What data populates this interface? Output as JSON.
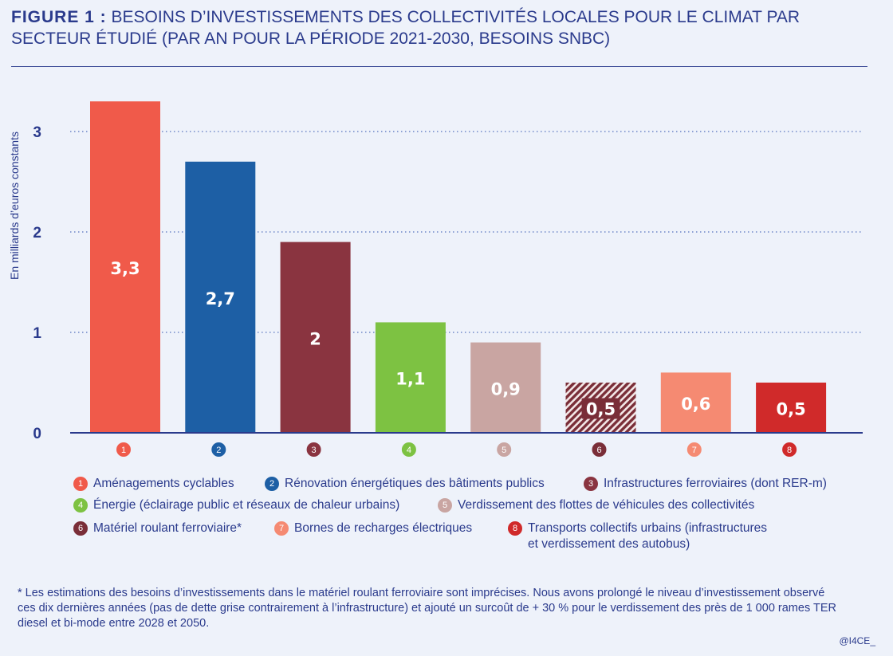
{
  "header": {
    "figure_label": "FIGURE 1 :",
    "title_text": "BESOINS D’INVESTISSEMENTS DES COLLECTIVITÉS LOCALES POUR LE CLIMAT PAR SECTEUR ÉTUDIÉ (PAR AN POUR LA PÉRIODE 2021-2030, BESOINS SNBC)"
  },
  "chart_data": {
    "type": "bar",
    "ylabel": "En milliards d’euros constants",
    "ylim": [
      0,
      3.3
    ],
    "yticks": [
      "0",
      "1",
      "2",
      "3"
    ],
    "grid": "dotted horizontal",
    "categories": [
      "1",
      "2",
      "3",
      "4",
      "5",
      "6",
      "7",
      "8"
    ],
    "values": [
      3.3,
      2.7,
      1.9,
      1.1,
      0.9,
      0.5,
      0.6,
      0.5
    ],
    "data_labels": [
      "3,3",
      "2,7",
      "2",
      "1,1",
      "0,9",
      "0,5",
      "0,6",
      "0,5"
    ],
    "colors": [
      "#f05a4a",
      "#1d5fa5",
      "#8a3440",
      "#7dc242",
      "#c9a5a2",
      "#7a2e38",
      "#f58a72",
      "#d02a2a"
    ],
    "hatched": [
      false,
      false,
      false,
      false,
      false,
      true,
      false,
      false
    ]
  },
  "legend": [
    {
      "num": "1",
      "label": "Aménagements cyclables"
    },
    {
      "num": "2",
      "label": "Rénovation énergétiques des bâtiments publics"
    },
    {
      "num": "3",
      "label": "Infrastructures ferroviaires (dont RER-m)"
    },
    {
      "num": "4",
      "label": "Énergie (éclairage public et réseaux de chaleur urbains)"
    },
    {
      "num": "5",
      "label": "Verdissement des flottes de véhicules des collectivités"
    },
    {
      "num": "6",
      "label": "Matériel roulant ferroviaire*"
    },
    {
      "num": "7",
      "label": "Bornes de recharges électriques"
    },
    {
      "num": "8",
      "label": "Transports collectifs urbains (infrastructures et verdissement des autobus)"
    }
  ],
  "footnote": "* Les estimations des besoins d’investissements dans le matériel roulant ferroviaire sont imprécises. Nous avons prolongé le niveau d’investissement observé ces dix dernières années (pas de dette grise contrairement à l’infrastructure) et ajouté un surcoût de + 30 % pour le verdissement des près de 1 000 rames TER diesel et bi-mode entre 2028 et 2050.",
  "credit": "@I4CE_"
}
